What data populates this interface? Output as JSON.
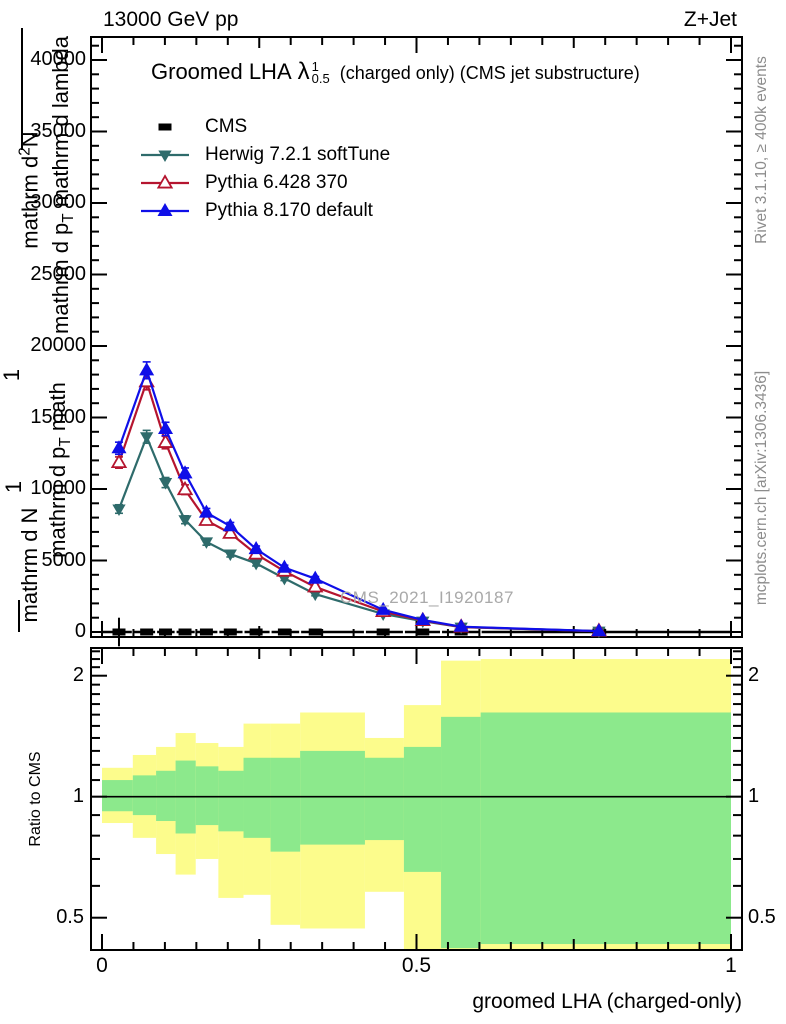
{
  "header": {
    "beam": "13000 GeV pp",
    "process": "Z+Jet"
  },
  "title": {
    "main": "Groomed LHA",
    "lambda": "λ",
    "sup": "1",
    "sub": "0.5",
    "suffix": "(charged only) (CMS jet substructure)"
  },
  "legend": [
    {
      "label": "CMS",
      "marker": "square",
      "color": "#000000"
    },
    {
      "label": "Herwig 7.2.1 softTune",
      "marker": "triangle-down",
      "color": "#2e6b6b"
    },
    {
      "label": "Pythia 6.428 370",
      "marker": "triangle-up-open",
      "color": "#b5152f"
    },
    {
      "label": "Pythia 8.170 default",
      "marker": "triangle-up",
      "color": "#0f0fe8"
    }
  ],
  "watermark": "CMS_2021_I1920187",
  "side_notes": {
    "top": "Rivet 3.1.10, ≥ 400k events",
    "bottom": "mcplots.cern.ch [arXiv:1306.3436]"
  },
  "ratio_label": "Ratio to CMS",
  "xlabel": "groomed LHA (charged-only)",
  "ylabel_fragments": {
    "f1a": "mathrm d",
    "f1sup": "2",
    "f1b": "N",
    "f2": "1",
    "f3": "1",
    "f4": "mathrm d N",
    "f5a": "mathrm d p",
    "f5sub": "T",
    "f5c": " mathrm d lambda",
    "f6a": "mathrm d p",
    "f6sub": "T",
    "f6c": " math"
  },
  "chart_data": {
    "type": "line",
    "title": "Groomed LHA lambda^1_0.5 (charged only) (CMS jet substructure)",
    "xlabel": "groomed LHA (charged-only)",
    "x": [
      0.027,
      0.071,
      0.101,
      0.132,
      0.166,
      0.204,
      0.245,
      0.29,
      0.339,
      0.447,
      0.51,
      0.571,
      0.79
    ],
    "series": [
      {
        "name": "CMS",
        "marker": "square",
        "color": "#000000",
        "values": [
          0,
          0,
          0,
          0,
          0,
          0,
          0,
          0,
          0,
          0,
          0,
          0,
          0
        ],
        "yerr": [
          1000,
          0,
          0,
          0,
          0,
          0,
          0,
          0,
          0,
          0,
          0,
          0,
          0
        ]
      },
      {
        "name": "Herwig 7.2.1 softTune",
        "marker": "triangle-down",
        "color": "#2e6b6b",
        "values": [
          8600,
          13650,
          10450,
          7850,
          6300,
          5450,
          4800,
          3750,
          2650,
          1260,
          760,
          340,
          60
        ]
      },
      {
        "name": "Pythia 6.428 370",
        "marker": "triangle-up-open",
        "color": "#b5152f",
        "values": [
          11850,
          17500,
          13250,
          9950,
          7800,
          6900,
          5450,
          4250,
          3150,
          1430,
          800,
          350,
          55
        ]
      },
      {
        "name": "Pythia 8.170 default",
        "marker": "triangle-up",
        "color": "#0f0fe8",
        "values": [
          12850,
          18300,
          14200,
          11100,
          8350,
          7400,
          5800,
          4500,
          3730,
          1550,
          840,
          370,
          60
        ]
      }
    ],
    "main_axis": {
      "xlim": [
        0,
        1
      ],
      "x_major": [
        0,
        0.5,
        1
      ],
      "x_medium": [
        0.25,
        0.75
      ],
      "x_minor_step": 0.05,
      "ylim": [
        0,
        41600
      ],
      "y_major_step": 5000,
      "y_minor_step": 1000,
      "y_labels": [
        0,
        5000,
        10000,
        15000,
        20000,
        25000,
        30000,
        35000,
        40000
      ],
      "grid": false,
      "legend_position": "top-left"
    },
    "ratio_axis": {
      "scale": "log",
      "ylim": [
        0.414,
        2.37
      ],
      "majors": [
        0.5,
        1,
        2
      ],
      "minors": [
        0.6,
        0.7,
        0.8,
        0.9,
        1.1,
        1.2,
        1.3,
        1.4,
        1.5,
        1.6,
        1.7,
        1.8,
        1.9,
        2.1,
        2.2,
        2.3
      ],
      "unity_line": 1
    },
    "ratio_bands": {
      "bin_edges": [
        0,
        0.049,
        0.086,
        0.117,
        0.149,
        0.185,
        0.225,
        0.268,
        0.315,
        0.418,
        0.48,
        0.539,
        0.602,
        1.0
      ],
      "yellow_color": "#fcfc8c",
      "green_color": "#8ce98c",
      "yellow": [
        [
          0.86,
          1.18
        ],
        [
          0.79,
          1.27
        ],
        [
          0.72,
          1.33
        ],
        [
          0.64,
          1.44
        ],
        [
          0.7,
          1.36
        ],
        [
          0.56,
          1.33
        ],
        [
          0.57,
          1.52
        ],
        [
          0.48,
          1.52
        ],
        [
          0.47,
          1.62
        ],
        [
          0.58,
          1.4
        ],
        [
          0.41,
          1.69
        ],
        [
          0.38,
          2.18
        ],
        [
          0.38,
          2.2
        ]
      ],
      "green": [
        [
          0.92,
          1.1
        ],
        [
          0.9,
          1.13
        ],
        [
          0.87,
          1.16
        ],
        [
          0.81,
          1.23
        ],
        [
          0.85,
          1.19
        ],
        [
          0.82,
          1.16
        ],
        [
          0.79,
          1.25
        ],
        [
          0.73,
          1.25
        ],
        [
          0.76,
          1.3
        ],
        [
          0.78,
          1.25
        ],
        [
          0.65,
          1.33
        ],
        [
          0.42,
          1.58
        ],
        [
          0.43,
          1.62
        ]
      ]
    }
  }
}
